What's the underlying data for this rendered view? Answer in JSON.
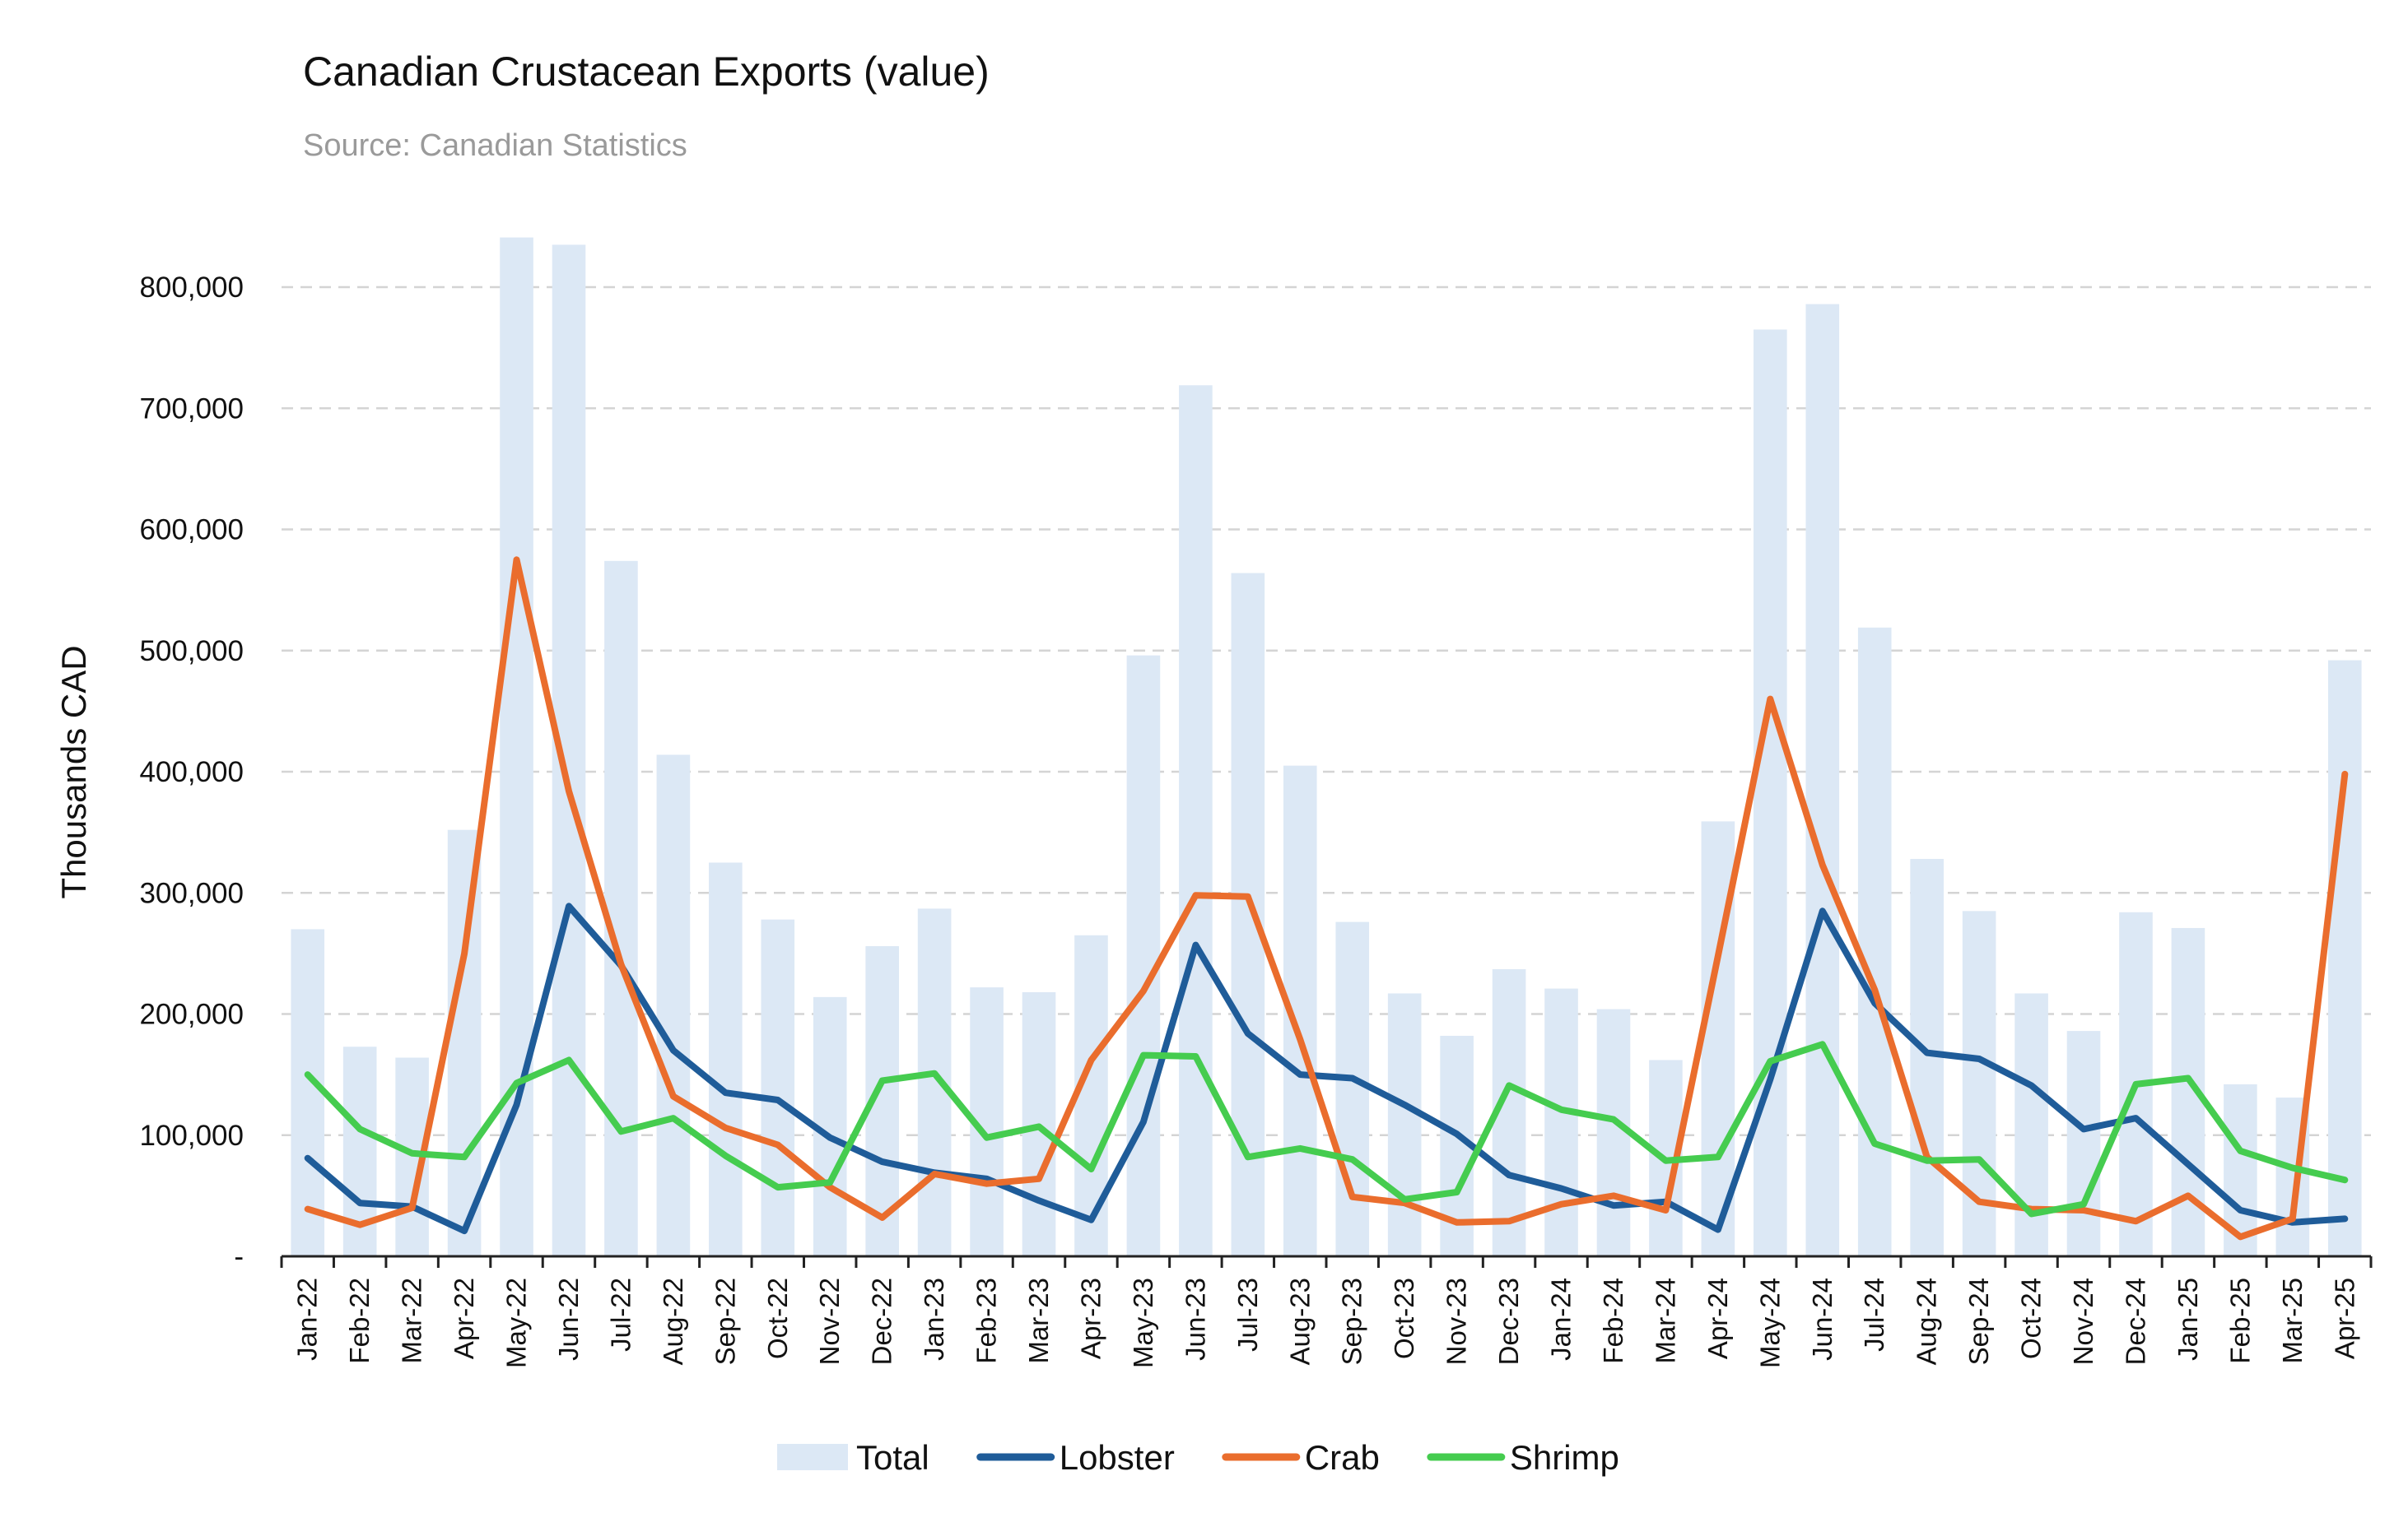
{
  "title": "Canadian Crustacean Exports (value)",
  "subtitle": "Source: Canadian Statistics",
  "chart_data": {
    "type": "bar",
    "title": "Canadian Crustacean Exports (value)",
    "subtitle": "Source: Canadian Statistics",
    "ylabel": "Thousands CAD",
    "xlabel": "",
    "ylim": [
      0,
      850000
    ],
    "yticks": [
      0,
      100000,
      200000,
      300000,
      400000,
      500000,
      600000,
      700000,
      800000
    ],
    "ytick_labels": [
      "-",
      "100,000",
      "200,000",
      "300,000",
      "400,000",
      "500,000",
      "600,000",
      "700,000",
      "800,000"
    ],
    "grid": true,
    "legend_position": "bottom",
    "categories": [
      "Jan-22",
      "Feb-22",
      "Mar-22",
      "Apr-22",
      "May-22",
      "Jun-22",
      "Jul-22",
      "Aug-22",
      "Sep-22",
      "Oct-22",
      "Nov-22",
      "Dec-22",
      "Jan-23",
      "Feb-23",
      "Mar-23",
      "Apr-23",
      "May-23",
      "Jun-23",
      "Jul-23",
      "Aug-23",
      "Sep-23",
      "Oct-23",
      "Nov-23",
      "Dec-23",
      "Jan-24",
      "Feb-24",
      "Mar-24",
      "Apr-24",
      "May-24",
      "Jun-24",
      "Jul-24",
      "Aug-24",
      "Sep-24",
      "Oct-24",
      "Nov-24",
      "Dec-24",
      "Jan-25",
      "Feb-25",
      "Mar-25",
      "Apr-25"
    ],
    "series": [
      {
        "name": "Total",
        "type": "bar",
        "color": "#dce8f5",
        "values": [
          270000,
          173000,
          164000,
          352000,
          841000,
          835000,
          574000,
          414000,
          325000,
          278000,
          214000,
          256000,
          287000,
          222000,
          218000,
          265000,
          496000,
          719000,
          564000,
          405000,
          276000,
          217000,
          182000,
          237000,
          221000,
          204000,
          162000,
          359000,
          765000,
          786000,
          519000,
          328000,
          285000,
          217000,
          186000,
          284000,
          271000,
          142000,
          131000,
          492000
        ]
      },
      {
        "name": "Lobster",
        "type": "line",
        "color": "#1f5c99",
        "values": [
          81000,
          44000,
          41000,
          21000,
          125000,
          289000,
          240000,
          170000,
          135000,
          129000,
          98000,
          78000,
          69000,
          64000,
          46000,
          30000,
          111000,
          257000,
          184000,
          150000,
          147000,
          125000,
          101000,
          67000,
          56000,
          42000,
          45000,
          22000,
          146000,
          285000,
          209000,
          168000,
          163000,
          141000,
          105000,
          114000,
          76000,
          38000,
          28000,
          31000
        ]
      },
      {
        "name": "Crab",
        "type": "line",
        "color": "#ea6d2d",
        "values": [
          39000,
          26000,
          40000,
          250000,
          575000,
          384000,
          241000,
          132000,
          106000,
          92000,
          57000,
          32000,
          68000,
          60000,
          64000,
          162000,
          219000,
          298000,
          297000,
          179000,
          49000,
          44000,
          28000,
          29000,
          43000,
          50000,
          38000,
          248000,
          460000,
          323000,
          220000,
          82000,
          45000,
          39000,
          38000,
          29000,
          50000,
          16000,
          31000,
          398000
        ]
      },
      {
        "name": "Shrimp",
        "type": "line",
        "color": "#45cc4f",
        "values": [
          150000,
          105000,
          85000,
          82000,
          143000,
          162000,
          103000,
          114000,
          83000,
          57000,
          61000,
          145000,
          151000,
          98000,
          107000,
          72000,
          166000,
          165000,
          82000,
          89000,
          80000,
          47000,
          53000,
          141000,
          121000,
          113000,
          79000,
          82000,
          161000,
          175000,
          93000,
          79000,
          80000,
          35000,
          43000,
          142000,
          147000,
          87000,
          73000,
          63000
        ]
      }
    ]
  }
}
